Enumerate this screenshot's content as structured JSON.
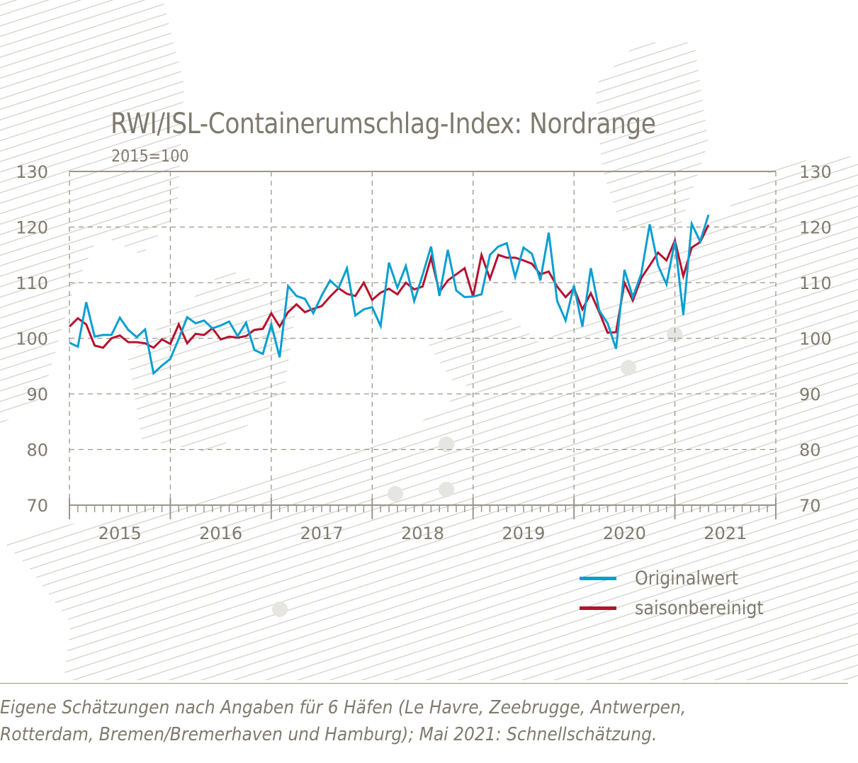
{
  "chart_data": {
    "type": "line",
    "title": "RWI/ISL-Containerumschlag-Index: Nordrange",
    "subtitle": "2015=100",
    "ylim": [
      70,
      130
    ],
    "yticks": [
      70,
      80,
      90,
      100,
      110,
      120,
      130
    ],
    "xticks": [
      "2015",
      "2016",
      "2017",
      "2018",
      "2019",
      "2020",
      "2021"
    ],
    "x_range": [
      "2015-01",
      "2021-12"
    ],
    "grid": true,
    "legend_placement": "bottom-right",
    "x_start": "2015-01",
    "frequency": "monthly",
    "series": [
      {
        "name": "Originalwert",
        "color": "#0a9fd0",
        "values": [
          99.2,
          98.5,
          106.5,
          100.3,
          100.6,
          100.6,
          103.7,
          101.5,
          100.2,
          101.6,
          93.7,
          95.1,
          96.3,
          99.9,
          103.8,
          102.7,
          103.2,
          101.8,
          102.3,
          103.0,
          100.4,
          102.8,
          97.9,
          97.2,
          102.5,
          96.6,
          109.4,
          107.6,
          107.1,
          104.5,
          107.7,
          110.4,
          109.0,
          112.6,
          104.1,
          105.2,
          105.6,
          102.2,
          113.6,
          109.1,
          113.0,
          106.7,
          111.4,
          116.5,
          107.6,
          115.9,
          108.6,
          107.4,
          107.5,
          107.9,
          115.0,
          116.5,
          117.1,
          111.0,
          116.3,
          115.2,
          110.4,
          119.0,
          106.7,
          103.2,
          109.5,
          102.1,
          112.6,
          105.0,
          102.7,
          98.1,
          112.3,
          107.4,
          111.6,
          120.5,
          113.1,
          109.7,
          117.5,
          104.2,
          120.6,
          117.4,
          122.2
        ]
      },
      {
        "name": "saisonbereinigt",
        "color": "#b5122e",
        "values": [
          102.1,
          103.6,
          102.5,
          98.7,
          98.3,
          100.0,
          100.5,
          99.3,
          99.3,
          99.1,
          98.3,
          99.8,
          99.0,
          102.5,
          99.1,
          100.8,
          100.6,
          101.8,
          99.8,
          100.3,
          100.1,
          100.4,
          101.5,
          101.7,
          104.5,
          102.1,
          104.7,
          106.1,
          104.7,
          105.3,
          105.8,
          107.5,
          109.0,
          108.0,
          107.6,
          110.0,
          106.9,
          108.2,
          108.9,
          107.9,
          110.0,
          108.8,
          109.3,
          114.5,
          108.3,
          110.4,
          111.5,
          112.6,
          107.5,
          115.0,
          110.7,
          115.0,
          114.5,
          114.5,
          114.0,
          113.4,
          111.5,
          112.0,
          109.3,
          107.4,
          109.0,
          105.2,
          108.1,
          104.7,
          101.0,
          101.1,
          110.0,
          106.8,
          110.8,
          113.1,
          115.4,
          114.0,
          117.6,
          111.2,
          116.3,
          117.3,
          120.4
        ]
      }
    ]
  },
  "footnote": {
    "line1": "Eigene Schätzungen nach Angaben für 6 Häfen (Le Havre, Zeebrugge, Antwerpen,",
    "line2": "Rotterdam, Bremen/Bremerhaven und Hamburg); Mai 2021: Schnellschätzung."
  },
  "colors": {
    "text": "#7f7a6d",
    "grid": "#9a968c",
    "hatch": "#c9c7c1"
  }
}
